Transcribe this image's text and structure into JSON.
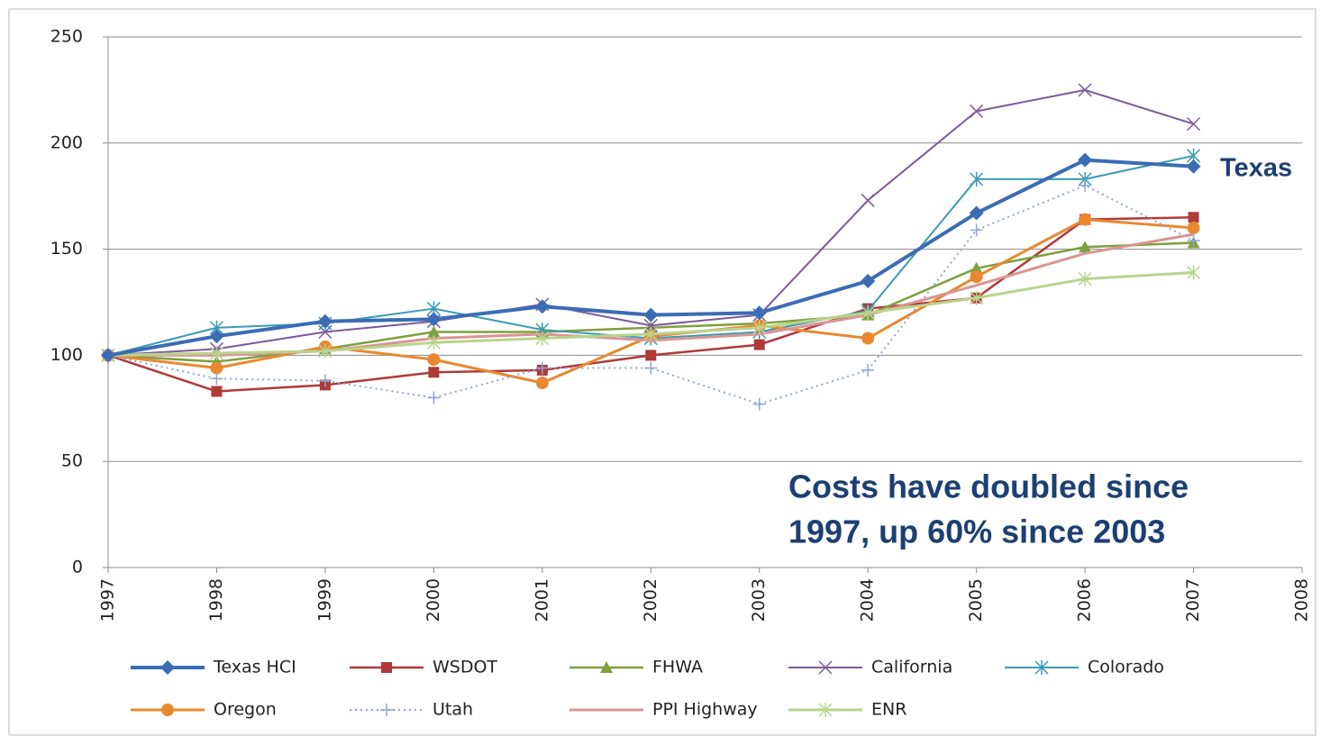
{
  "chart_data": {
    "type": "line",
    "x": [
      1997,
      1998,
      1999,
      2000,
      2001,
      2002,
      2003,
      2004,
      2005,
      2006,
      2007
    ],
    "xlim": [
      1997,
      2008
    ],
    "xticks": [
      1997,
      1998,
      1999,
      2000,
      2001,
      2002,
      2003,
      2004,
      2005,
      2006,
      2007,
      2008
    ],
    "ylim": [
      0,
      250
    ],
    "yticks": [
      0,
      50,
      100,
      150,
      200,
      250
    ],
    "grid": true,
    "legend": "bottom",
    "annotations": [
      "Texas",
      "Costs have doubled since",
      "1997, up 60% since 2003"
    ],
    "series": [
      {
        "name": "Texas HCI",
        "color": "#3b6cb5",
        "marker": "diamond",
        "width": 4,
        "values": [
          100,
          109,
          116,
          117,
          123,
          119,
          120,
          135,
          167,
          192,
          189
        ]
      },
      {
        "name": "WSDOT",
        "color": "#b0393a",
        "marker": "square",
        "width": 2.5,
        "values": [
          100,
          83,
          86,
          92,
          93,
          100,
          105,
          122,
          127,
          164,
          165
        ]
      },
      {
        "name": "FHWA",
        "color": "#7ea03f",
        "marker": "triangle",
        "width": 2.5,
        "values": [
          100,
          97,
          103,
          111,
          111,
          113,
          115,
          119,
          141,
          151,
          153
        ]
      },
      {
        "name": "California",
        "color": "#7b5a9b",
        "marker": "x",
        "width": 2,
        "values": [
          100,
          103,
          111,
          116,
          124,
          114,
          119,
          173,
          215,
          225,
          209
        ]
      },
      {
        "name": "Colorado",
        "color": "#3a9bb0",
        "marker": "asterisk",
        "width": 2,
        "values": [
          100,
          113,
          115,
          122,
          112,
          108,
          111,
          121,
          183,
          183,
          194
        ]
      },
      {
        "name": "Oregon",
        "color": "#e8892f",
        "marker": "circle",
        "width": 3,
        "values": [
          100,
          94,
          104,
          98,
          87,
          109,
          114,
          108,
          137,
          164,
          160
        ]
      },
      {
        "name": "Utah",
        "color": "#8ea5d4",
        "marker": "plus",
        "width": 2,
        "dash": "dotted",
        "values": [
          100,
          89,
          88,
          80,
          94,
          94,
          77,
          93,
          159,
          180,
          154
        ]
      },
      {
        "name": "PPI Highway",
        "color": "#d99594",
        "marker": "none",
        "width": 3,
        "values": [
          100,
          100,
          102,
          108,
          110,
          107,
          110,
          119,
          133,
          148,
          157
        ]
      },
      {
        "name": "ENR",
        "color": "#b8d48c",
        "marker": "asterisk",
        "width": 3,
        "values": [
          100,
          101,
          102,
          106,
          108,
          110,
          113,
          120,
          127,
          136,
          139
        ]
      }
    ]
  }
}
